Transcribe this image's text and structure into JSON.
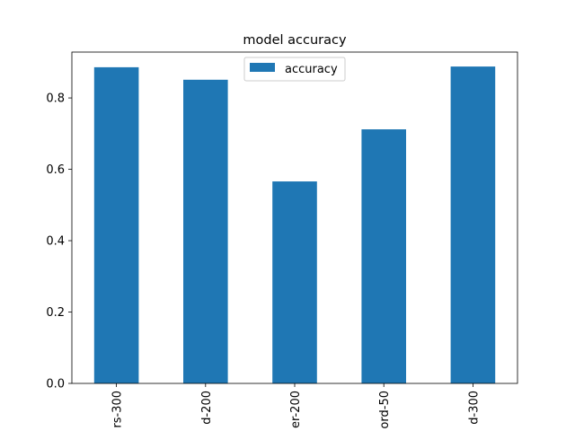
{
  "chart_data": {
    "type": "bar",
    "title": "model accuracy",
    "xlabel": "",
    "ylabel": "",
    "categories": [
      "rs-300",
      "d-200",
      "er-200",
      "ord-50",
      "d-300"
    ],
    "series": [
      {
        "name": "accuracy",
        "values": [
          0.886,
          0.851,
          0.566,
          0.712,
          0.888
        ],
        "color": "#1f77b4"
      }
    ],
    "ylim": [
      0,
      0.9285
    ],
    "yticks": [
      0.0,
      0.2,
      0.4,
      0.6,
      0.8
    ],
    "ytick_labels": [
      "0.0",
      "0.2",
      "0.4",
      "0.6",
      "0.8"
    ],
    "grid": false,
    "legend": {
      "placement": "top-center",
      "entries": [
        "accuracy"
      ]
    }
  }
}
